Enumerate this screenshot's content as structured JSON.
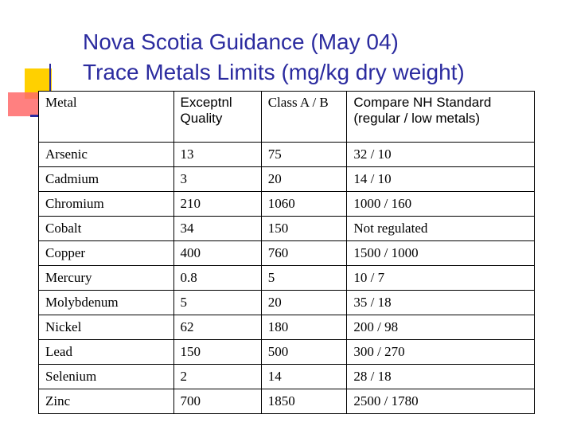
{
  "title": {
    "line1": "Nova Scotia Guidance (May 04)",
    "line2": "Trace Metals Limits (mg/kg dry weight)"
  },
  "table": {
    "headers": {
      "metal": "Metal",
      "exceptional_line1": "Exceptnl",
      "exceptional_line2": "Quality",
      "class_a": "Class A / B",
      "compare_line1": "Compare NH Standard",
      "compare_line2": "(regular / low metals)"
    },
    "rows": [
      [
        "Arsenic",
        "13",
        "75",
        "32 / 10"
      ],
      [
        "Cadmium",
        "3",
        "20",
        "14 / 10"
      ],
      [
        "Chromium",
        "210",
        "1060",
        "1000 / 160"
      ],
      [
        "Cobalt",
        "34",
        "150",
        "Not regulated"
      ],
      [
        "Copper",
        "400",
        "760",
        "1500 / 1000"
      ],
      [
        "Mercury",
        "0.8",
        "5",
        "10 / 7"
      ],
      [
        "Molybdenum",
        "5",
        "20",
        "35 / 18"
      ],
      [
        "Nickel",
        "62",
        "180",
        "200 / 98"
      ],
      [
        "Lead",
        "150",
        "500",
        "300 / 270"
      ],
      [
        "Selenium",
        "2",
        "14",
        "28 / 18"
      ],
      [
        "Zinc",
        "700",
        "1850",
        "2500 / 1780"
      ]
    ]
  },
  "colors": {
    "title": "#2b2b9f",
    "accent_yellow": "#ffd000",
    "accent_red": "#ff6a6a"
  }
}
